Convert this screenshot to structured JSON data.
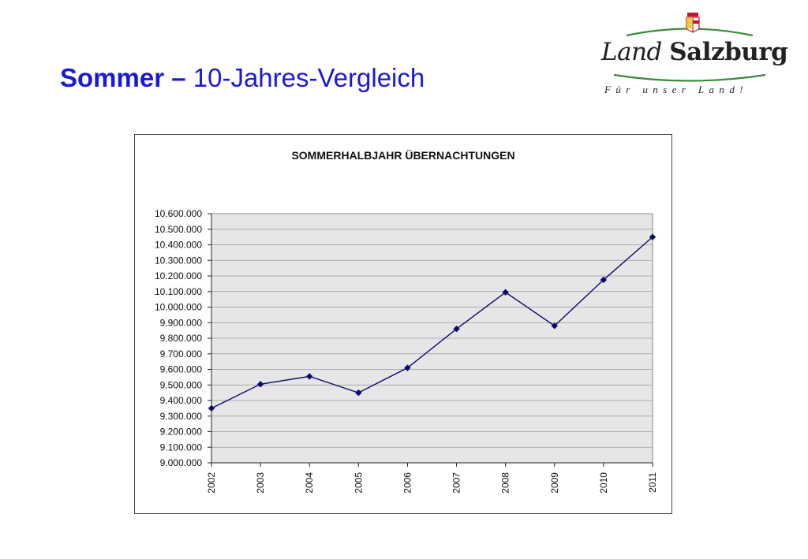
{
  "slide": {
    "title_bold": "Sommer –",
    "title_rest": " 10-Jahres-Vergleich"
  },
  "logo": {
    "name_part1": "Land",
    "name_part2": "Salzburg",
    "tagline": "Für unser Land!",
    "coat_of_arms_icon": "salzburg-coat-of-arms-icon",
    "colors": {
      "red": "#c8102e",
      "green": "#3a8a3a"
    }
  },
  "colors": {
    "title": "#1a1ad6",
    "series": "#0b0b6e",
    "plot_bg": "#e6e6e6",
    "grid": "#9a9a9a"
  },
  "chart_data": {
    "type": "line",
    "title": "SOMMERHALBJAHR ÜBERNACHTUNGEN",
    "xlabel": "",
    "ylabel": "",
    "categories": [
      "2002",
      "2003",
      "2004",
      "2005",
      "2006",
      "2007",
      "2008",
      "2009",
      "2010",
      "2011"
    ],
    "series": [
      {
        "values": [
          9350000,
          9505000,
          9555000,
          9450000,
          9610000,
          9860000,
          10095000,
          9880000,
          10175000,
          10450000
        ]
      }
    ],
    "ylim": [
      9000000,
      10600000
    ],
    "ytick_step": 100000,
    "yticks": [
      "9.000.000",
      "9.100.000",
      "9.200.000",
      "9.300.000",
      "9.400.000",
      "9.500.000",
      "9.600.000",
      "9.700.000",
      "9.800.000",
      "9.900.000",
      "10.000.000",
      "10.100.000",
      "10.200.000",
      "10.300.000",
      "10.400.000",
      "10.500.000",
      "10.600.000"
    ],
    "grid": true,
    "legend": "none",
    "marker": "diamond"
  }
}
